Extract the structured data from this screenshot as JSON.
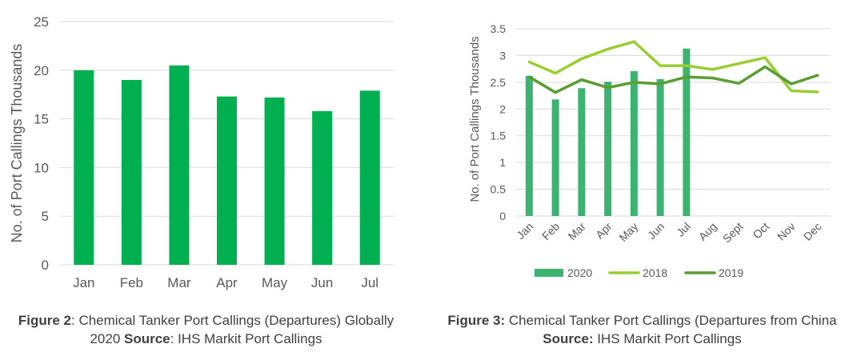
{
  "chart_data": [
    {
      "type": "bar",
      "ylabel": "No. of Port Callings Thousands",
      "ylim": [
        0,
        25
      ],
      "yticks": [
        "0",
        "5",
        "10",
        "15",
        "20",
        "25"
      ],
      "grid": true,
      "categories": [
        "Jan",
        "Feb",
        "Mar",
        "Apr",
        "May",
        "Jun",
        "Jul"
      ],
      "values": [
        20.0,
        19.0,
        20.5,
        17.3,
        17.2,
        15.8,
        17.9
      ],
      "color": "#00b050"
    },
    {
      "type": "bar+line",
      "ylabel": "No. of Port Callings Thousands",
      "ylim": [
        0,
        3.5
      ],
      "yticks": [
        "0",
        "0.5",
        "1",
        "1.5",
        "2",
        "2.5",
        "3",
        "3.5"
      ],
      "grid": true,
      "legend_position": "bottom",
      "categories": [
        "Jan",
        "Feb",
        "Mar",
        "Apr",
        "May",
        "Jun",
        "Jul",
        "Aug",
        "Sept",
        "Oct",
        "Nov",
        "Dec"
      ],
      "series": [
        {
          "name": "2020",
          "type": "bar",
          "color": "#3cb371",
          "values": [
            2.62,
            2.18,
            2.39,
            2.51,
            2.71,
            2.56,
            3.13,
            null,
            null,
            null,
            null,
            null
          ]
        },
        {
          "name": "2018",
          "type": "line",
          "color": "#9acd32",
          "values": [
            2.88,
            2.67,
            2.94,
            3.12,
            3.26,
            2.81,
            2.81,
            2.74,
            2.85,
            2.96,
            2.34,
            2.32
          ]
        },
        {
          "name": "2019",
          "type": "line",
          "color": "#5a9e33",
          "values": [
            2.6,
            2.31,
            2.55,
            2.4,
            2.5,
            2.47,
            2.6,
            2.58,
            2.48,
            2.79,
            2.47,
            2.63
          ]
        }
      ]
    }
  ],
  "captions": {
    "fig2": {
      "bold1": "Figure 2",
      "text1": ": Chemical Tanker Port Callings (Departures) Globally 2020 ",
      "bold2": "Source",
      "text2": ": IHS Markit Port Callings"
    },
    "fig3": {
      "bold1": "Figure 3:",
      "text1": " Chemical Tanker Port Callings (Departures from China ",
      "bold2": "Source:",
      "text2": " IHS Markit Port Callings"
    }
  }
}
